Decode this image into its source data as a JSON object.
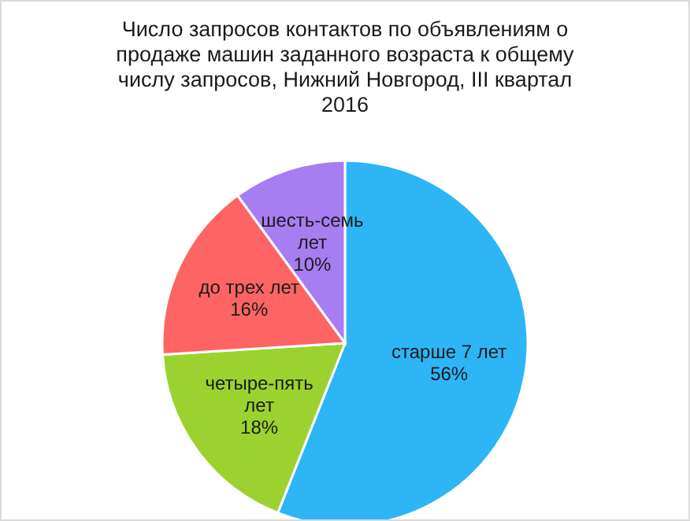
{
  "chart_data": {
    "type": "pie",
    "title": "Число запросов контактов по объявлениям о продаже машин заданного возраста к общему числу запросов, Нижний Новгород, III квартал 2016",
    "categories": [
      "старше 7 лет",
      "четыре-пять лет",
      "до трех лет",
      "шесть-семь лет"
    ],
    "values": [
      56,
      18,
      16,
      10
    ],
    "value_labels": [
      "56%",
      "18%",
      "16%",
      "10%"
    ],
    "colors": [
      "#2eb5f5",
      "#9bd22f",
      "#ff6464",
      "#a77df2"
    ],
    "legend": false
  }
}
